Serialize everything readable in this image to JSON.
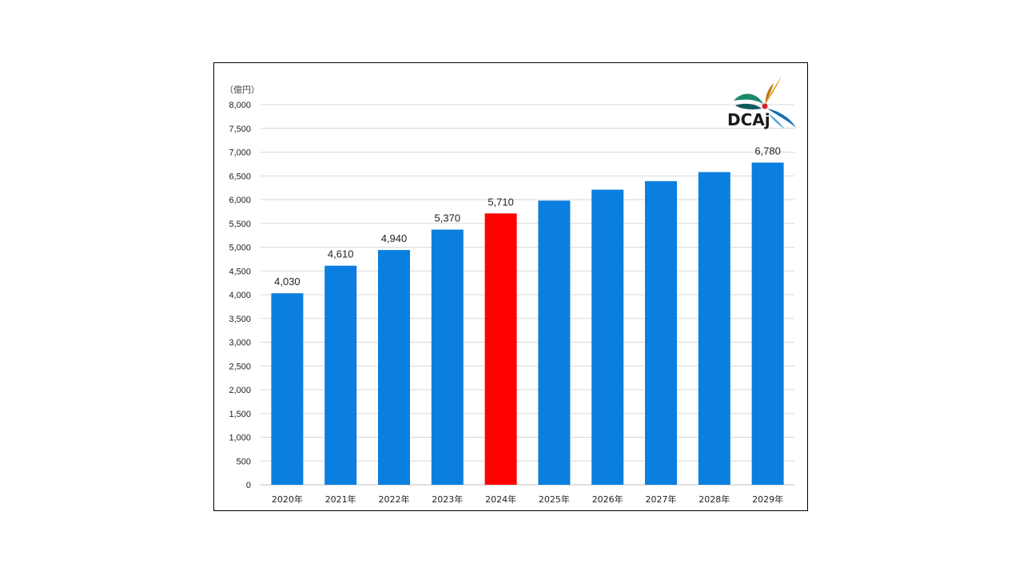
{
  "chart_data": {
    "type": "bar",
    "unit_label": "（億円）",
    "categories": [
      "2020年",
      "2021年",
      "2022年",
      "2023年",
      "2024年",
      "2025年",
      "2026年",
      "2027年",
      "2028年",
      "2029年"
    ],
    "values": [
      4030,
      4610,
      4940,
      5370,
      5710,
      5980,
      6210,
      6390,
      6580,
      6780
    ],
    "data_labels": [
      "4,030",
      "4,610",
      "4,940",
      "5,370",
      "5,710",
      "",
      "",
      "",
      "",
      "6,780"
    ],
    "highlight_index": 4,
    "colors": {
      "bar": "#0a7fe0",
      "highlight": "#ff0000"
    },
    "ylim": [
      0,
      8000
    ],
    "y_ticks": [
      0,
      500,
      1000,
      1500,
      2000,
      2500,
      3000,
      3500,
      4000,
      4500,
      5000,
      5500,
      6000,
      6500,
      7000,
      7500,
      8000
    ],
    "y_tick_labels": [
      "0",
      "500",
      "1,000",
      "1,500",
      "2,000",
      "2,500",
      "3,000",
      "3,500",
      "4,000",
      "4,500",
      "5,000",
      "5,500",
      "6,000",
      "6,500",
      "7,000",
      "7,500",
      "8,000"
    ],
    "grid": true,
    "legend": "none"
  },
  "logo": {
    "text": "DCAj",
    "name": "dcaj-logo"
  }
}
